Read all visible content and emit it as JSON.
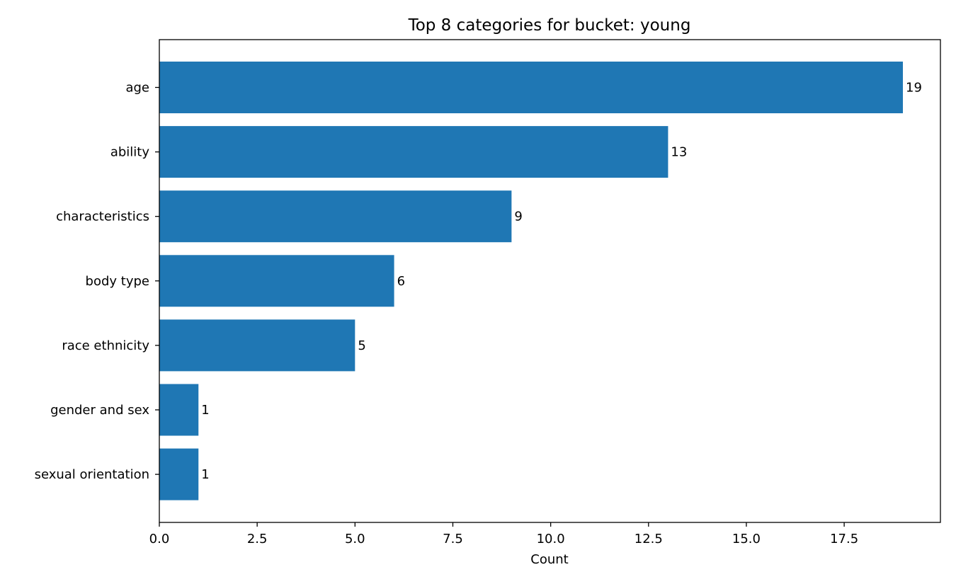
{
  "chart_data": {
    "type": "bar",
    "orientation": "horizontal",
    "title": "Top 8 categories for bucket: young",
    "xlabel": "Count",
    "ylabel": "",
    "xlim": [
      0,
      20.0
    ],
    "xticks": [
      "0.0",
      "2.5",
      "5.0",
      "7.5",
      "10.0",
      "12.5",
      "15.0",
      "17.5"
    ],
    "categories": [
      "age",
      "ability",
      "characteristics",
      "body type",
      "race ethnicity",
      "gender and sex",
      "sexual orientation"
    ],
    "values": [
      19,
      13,
      9,
      6,
      5,
      1,
      1
    ],
    "data_labels": [
      "19",
      "13",
      "9",
      "6",
      "5",
      "1",
      "1"
    ],
    "bar_color": "#1f77b4",
    "grid": false,
    "legend": "none"
  }
}
